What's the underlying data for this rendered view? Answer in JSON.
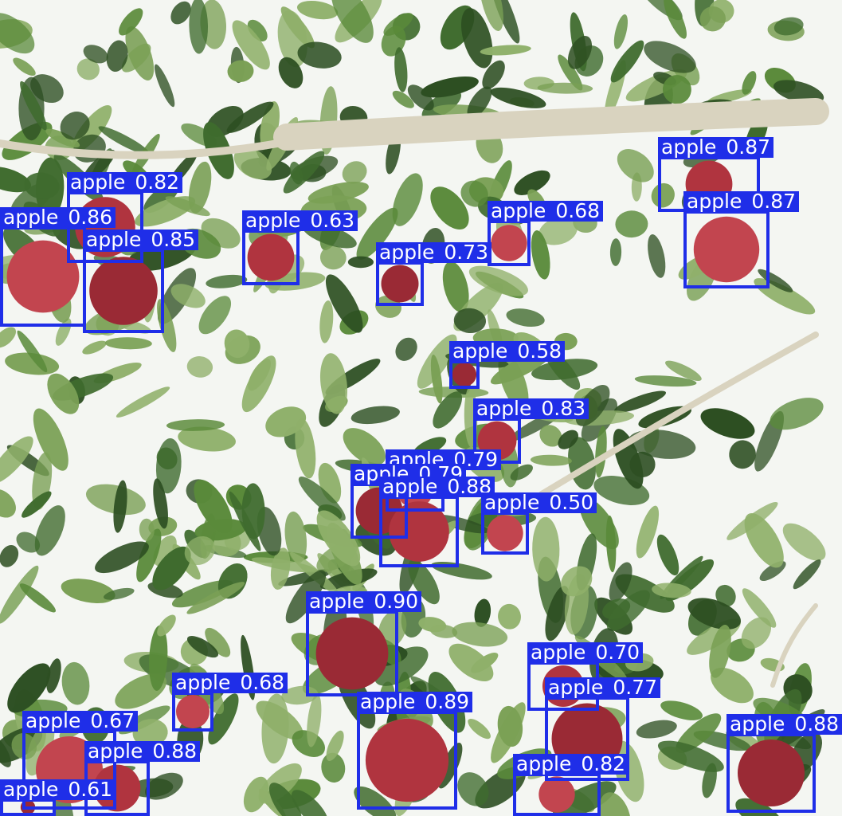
{
  "image": {
    "subject": "apple tree foliage with red apples",
    "box_color": "#1f2ee8",
    "label_text_color": "#ffffff",
    "leaf_colors": [
      "#3f6b2e",
      "#5a8a3a",
      "#7aa055",
      "#2d4f22",
      "#8fb06a"
    ],
    "apple_colors": [
      "#b0343f",
      "#c2454f",
      "#9a2a35"
    ],
    "branch_color": "#d9d3bf",
    "sky_color": "#f4f6f2"
  },
  "detections": [
    {
      "label": "apple",
      "score": "0.82"
    },
    {
      "label": "apple",
      "score": "0.86"
    },
    {
      "label": "apple",
      "score": "0.85"
    },
    {
      "label": "apple",
      "score": "0.63"
    },
    {
      "label": "apple",
      "score": "0.68"
    },
    {
      "label": "apple",
      "score": "0.73"
    },
    {
      "label": "apple",
      "score": "0.87"
    },
    {
      "label": "apple",
      "score": "0.87"
    },
    {
      "label": "apple",
      "score": "0.58"
    },
    {
      "label": "apple",
      "score": "0.83"
    },
    {
      "label": "apple",
      "score": "0.79"
    },
    {
      "label": "apple",
      "score": "0.79"
    },
    {
      "label": "apple",
      "score": "0.88"
    },
    {
      "label": "apple",
      "score": "0.50"
    },
    {
      "label": "apple",
      "score": "0.90"
    },
    {
      "label": "apple",
      "score": "0.70"
    },
    {
      "label": "apple",
      "score": "0.68"
    },
    {
      "label": "apple",
      "score": "0.77"
    },
    {
      "label": "apple",
      "score": "0.89"
    },
    {
      "label": "apple",
      "score": "0.67"
    },
    {
      "label": "apple",
      "score": "0.88"
    },
    {
      "label": "apple",
      "score": "0.88"
    },
    {
      "label": "apple",
      "score": "0.82"
    },
    {
      "label": "apple",
      "score": "0.61"
    }
  ]
}
